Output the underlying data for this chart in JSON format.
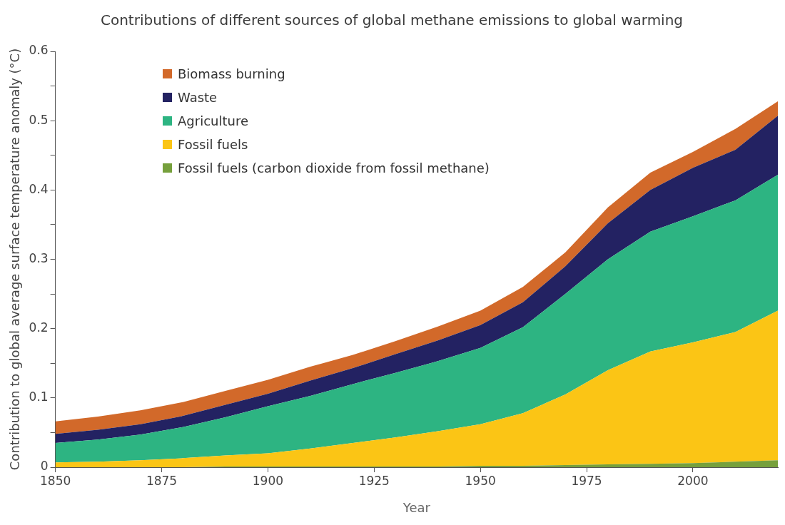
{
  "chart_data": {
    "type": "area",
    "stacked": true,
    "title": "Contributions of different sources of global methane emissions to global warming",
    "xlabel": "Year",
    "ylabel": "Contribution to global average surface temperature anomaly (°C)",
    "x": [
      1850,
      1860,
      1870,
      1880,
      1890,
      1900,
      1910,
      1920,
      1930,
      1940,
      1950,
      1960,
      1970,
      1980,
      1990,
      2000,
      2010,
      2020
    ],
    "series": [
      {
        "name": "Fossil fuels (carbon dioxide from fossil methane)",
        "color": "#76a03c",
        "values": [
          0,
          0,
          0,
          0,
          0.001,
          0.001,
          0.001,
          0.001,
          0.001,
          0.001,
          0.002,
          0.002,
          0.003,
          0.004,
          0.005,
          0.006,
          0.008,
          0.01
        ]
      },
      {
        "name": "Fossil fuels",
        "color": "#fbc515",
        "values": [
          0.007,
          0.008,
          0.01,
          0.013,
          0.016,
          0.019,
          0.026,
          0.034,
          0.042,
          0.051,
          0.06,
          0.076,
          0.102,
          0.136,
          0.162,
          0.174,
          0.187,
          0.216
        ]
      },
      {
        "name": "Agriculture",
        "color": "#2db482",
        "values": [
          0.028,
          0.032,
          0.037,
          0.045,
          0.055,
          0.068,
          0.076,
          0.085,
          0.093,
          0.101,
          0.11,
          0.124,
          0.145,
          0.16,
          0.173,
          0.182,
          0.19,
          0.196
        ]
      },
      {
        "name": "Waste",
        "color": "#232262",
        "values": [
          0.013,
          0.014,
          0.015,
          0.016,
          0.018,
          0.018,
          0.022,
          0.023,
          0.027,
          0.03,
          0.033,
          0.036,
          0.04,
          0.052,
          0.06,
          0.07,
          0.073,
          0.085
        ]
      },
      {
        "name": "Biomass burning",
        "color": "#d2692a",
        "values": [
          0.018,
          0.019,
          0.02,
          0.02,
          0.02,
          0.02,
          0.02,
          0.019,
          0.019,
          0.02,
          0.021,
          0.022,
          0.02,
          0.023,
          0.025,
          0.023,
          0.03,
          0.021
        ]
      }
    ],
    "xlim": [
      1850,
      2020
    ],
    "xticks": [
      1850,
      1875,
      1900,
      1925,
      1950,
      1975,
      2000
    ],
    "ylim": [
      0,
      0.6
    ],
    "yticks": [
      0,
      {
        "value": 0.05,
        "label": null
      },
      0.1,
      {
        "value": 0.15,
        "label": null
      },
      0.2,
      {
        "value": 0.25,
        "label": null
      },
      0.3,
      {
        "value": 0.35,
        "label": null
      },
      0.4,
      {
        "value": 0.45,
        "label": null
      },
      0.5,
      {
        "value": 0.55,
        "label": null
      },
      0.6
    ],
    "grid": false,
    "legend": "top left"
  }
}
